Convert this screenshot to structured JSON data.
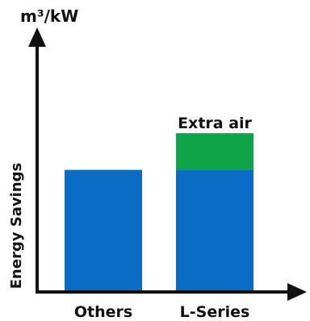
{
  "chart_data": {
    "type": "bar",
    "categories": [
      "Others",
      "L-Series"
    ],
    "series": [
      {
        "values": [
          1.0,
          1.0
        ]
      },
      {
        "name": "Extra air",
        "values": [
          0,
          0.3
        ]
      }
    ],
    "stacked": true,
    "xlabel": "",
    "ylabel": "Energy Savings",
    "y_unit": "m³/kW",
    "ylim": [
      0,
      2.1
    ],
    "grid": false,
    "colors": {
      "base": "#0a6cc4",
      "extra": "#0ea54a",
      "axis": "#111111"
    }
  }
}
